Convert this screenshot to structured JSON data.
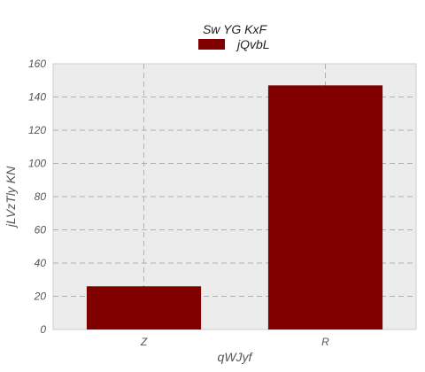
{
  "chart_data": {
    "type": "bar",
    "categories": [
      "Z",
      "R"
    ],
    "series": [
      {
        "name": "jQvbL",
        "values": [
          26,
          147
        ],
        "color": "#800000"
      }
    ],
    "legend_title": "Sw YG KxF",
    "xlabel": "qWJyf",
    "ylabel": "jLVzTly KN",
    "ylim": [
      0,
      160
    ],
    "yticks": [
      0,
      20,
      40,
      60,
      80,
      100,
      120,
      140,
      160
    ],
    "grid": true,
    "legend_position": "top-center",
    "plot_background": "#ececec",
    "grid_color": "#b0b0b0"
  }
}
